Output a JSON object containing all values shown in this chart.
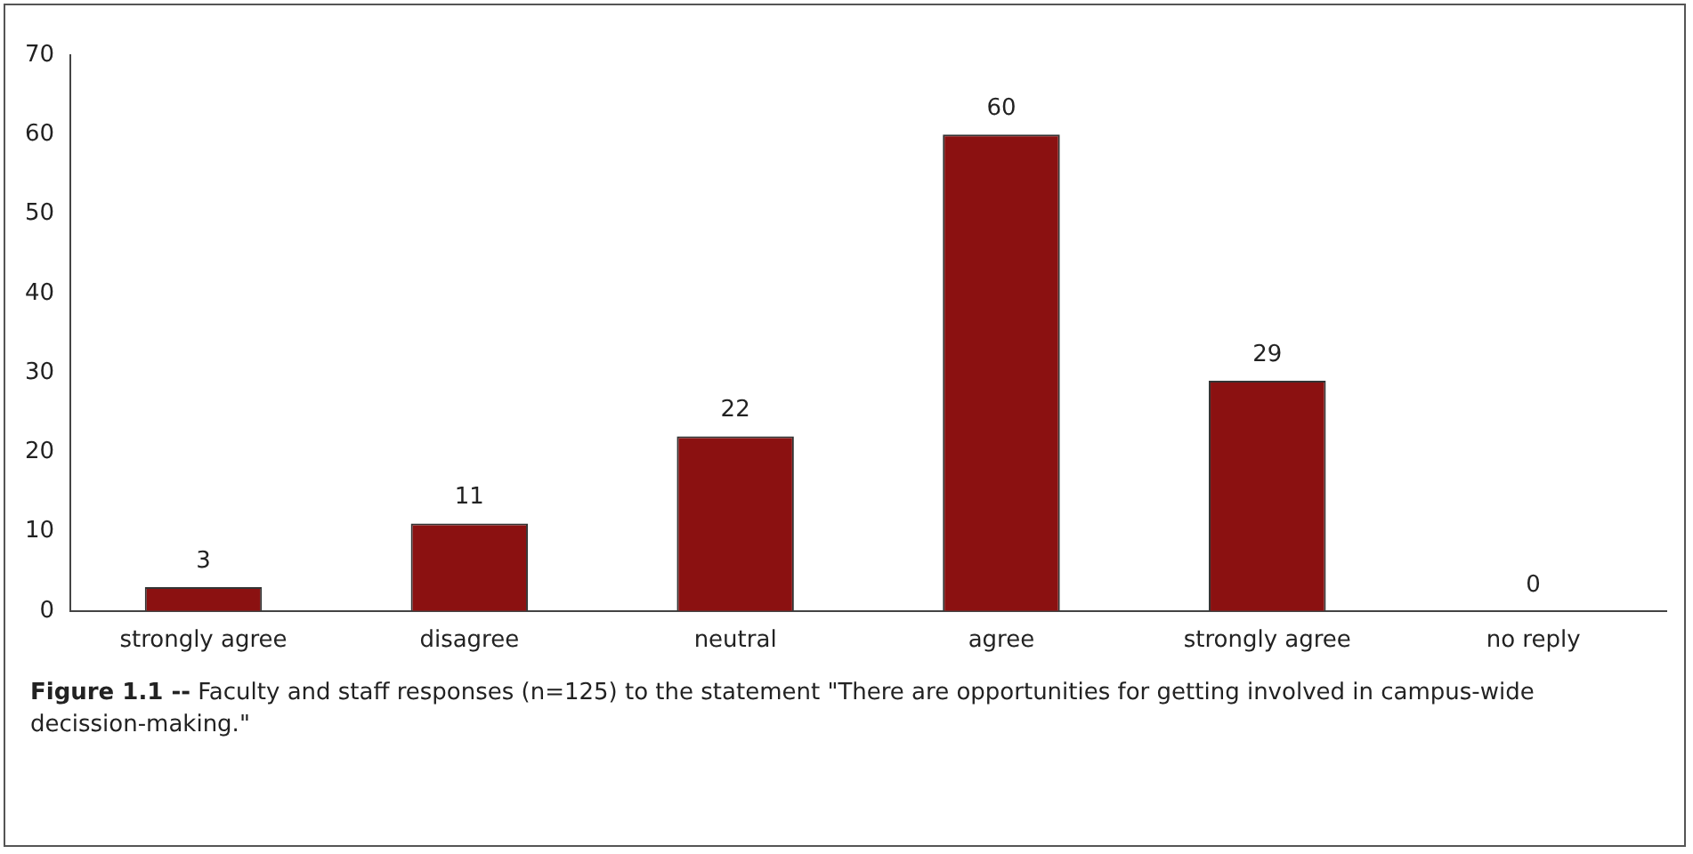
{
  "chart_data": {
    "type": "bar",
    "categories": [
      "strongly agree",
      "disagree",
      "neutral",
      "agree",
      "strongly agree",
      "no reply"
    ],
    "values": [
      3,
      11,
      22,
      60,
      29,
      0
    ],
    "color": "#8b1111",
    "ylim": [
      0,
      70
    ],
    "yticks": [
      0,
      10,
      20,
      30,
      40,
      50,
      60,
      70
    ],
    "grid": false,
    "legend": false,
    "data_labels": true,
    "annotations": [
      "Figure 1.1 --",
      "Faculty and staff responses (n=125) to the statement \"There are opportunities for getting involved in campus-wide decission-making.\""
    ]
  }
}
